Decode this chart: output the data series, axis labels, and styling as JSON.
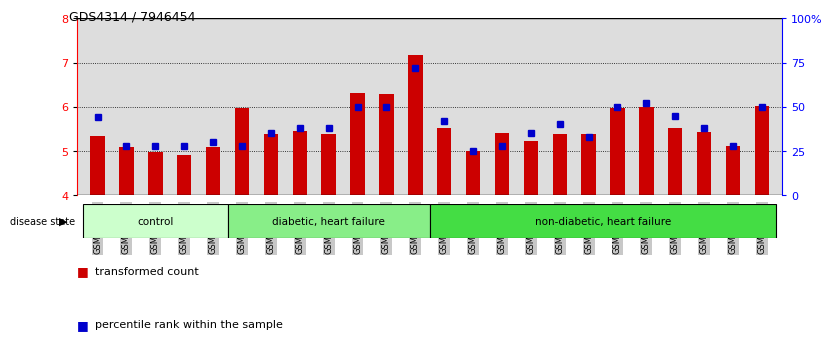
{
  "title": "GDS4314 / 7946454",
  "samples": [
    "GSM662158",
    "GSM662159",
    "GSM662160",
    "GSM662161",
    "GSM662162",
    "GSM662163",
    "GSM662164",
    "GSM662165",
    "GSM662166",
    "GSM662167",
    "GSM662168",
    "GSM662169",
    "GSM662170",
    "GSM662171",
    "GSM662172",
    "GSM662173",
    "GSM662174",
    "GSM662175",
    "GSM662176",
    "GSM662177",
    "GSM662178",
    "GSM662179",
    "GSM662180",
    "GSM662181"
  ],
  "bar_values": [
    5.35,
    5.1,
    4.98,
    4.92,
    5.08,
    5.97,
    5.38,
    5.45,
    5.38,
    6.32,
    6.3,
    7.18,
    5.52,
    5.0,
    5.4,
    5.22,
    5.38,
    5.38,
    5.97,
    6.0,
    5.52,
    5.42,
    5.12,
    6.02
  ],
  "percentile_values": [
    44,
    28,
    28,
    28,
    30,
    28,
    35,
    38,
    38,
    50,
    50,
    72,
    42,
    25,
    28,
    35,
    40,
    33,
    50,
    52,
    45,
    38,
    28,
    50
  ],
  "groups": [
    {
      "label": "control",
      "start": 0,
      "end": 5,
      "color": "#ccffcc"
    },
    {
      "label": "diabetic, heart failure",
      "start": 5,
      "end": 12,
      "color": "#88ee88"
    },
    {
      "label": "non-diabetic, heart failure",
      "start": 12,
      "end": 24,
      "color": "#44dd44"
    }
  ],
  "ylim_left": [
    4,
    8
  ],
  "ylim_right": [
    0,
    100
  ],
  "yticks_left": [
    4,
    5,
    6,
    7,
    8
  ],
  "yticks_right": [
    0,
    25,
    50,
    75,
    100
  ],
  "ytick_labels_right": [
    "0",
    "25",
    "50",
    "75",
    "100%"
  ],
  "bar_color": "#cc0000",
  "percentile_color": "#0000cc",
  "background_color": "#ffffff",
  "plot_bg_color": "#dddddd",
  "bar_width": 0.5,
  "percentile_marker_size": 5
}
